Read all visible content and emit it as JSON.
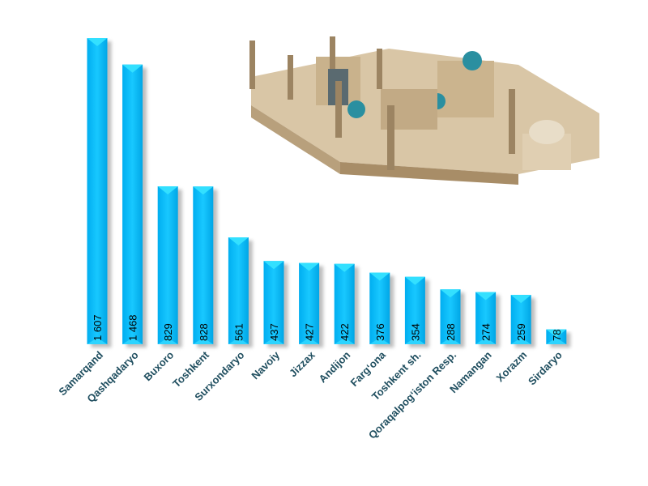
{
  "chart_data": {
    "type": "bar",
    "title": "",
    "xlabel": "",
    "ylabel": "",
    "ylim": [
      0,
      1700
    ],
    "grid": false,
    "categories": [
      "Samarqand",
      "Qashqadaryo",
      "Buxoro",
      "Toshkent",
      "Surxondaryo",
      "Navoiy",
      "Jizzax",
      "Andijon",
      "Farg‘ona",
      "Toshkent sh.",
      "Qoraqalpog‘iston Resp.",
      "Namangan",
      "Xorazm",
      "Sirdaryo"
    ],
    "values": [
      1607,
      1468,
      829,
      828,
      561,
      437,
      427,
      422,
      376,
      354,
      288,
      274,
      259,
      78
    ],
    "value_labels": [
      "1 607",
      "1 468",
      "829",
      "828",
      "561",
      "437",
      "427",
      "422",
      "376",
      "354",
      "288",
      "274",
      "259",
      "78"
    ],
    "bar_color": "#00b8f0",
    "bar_top_color": "#33e0ff",
    "label_color": "#1f4e5f"
  }
}
